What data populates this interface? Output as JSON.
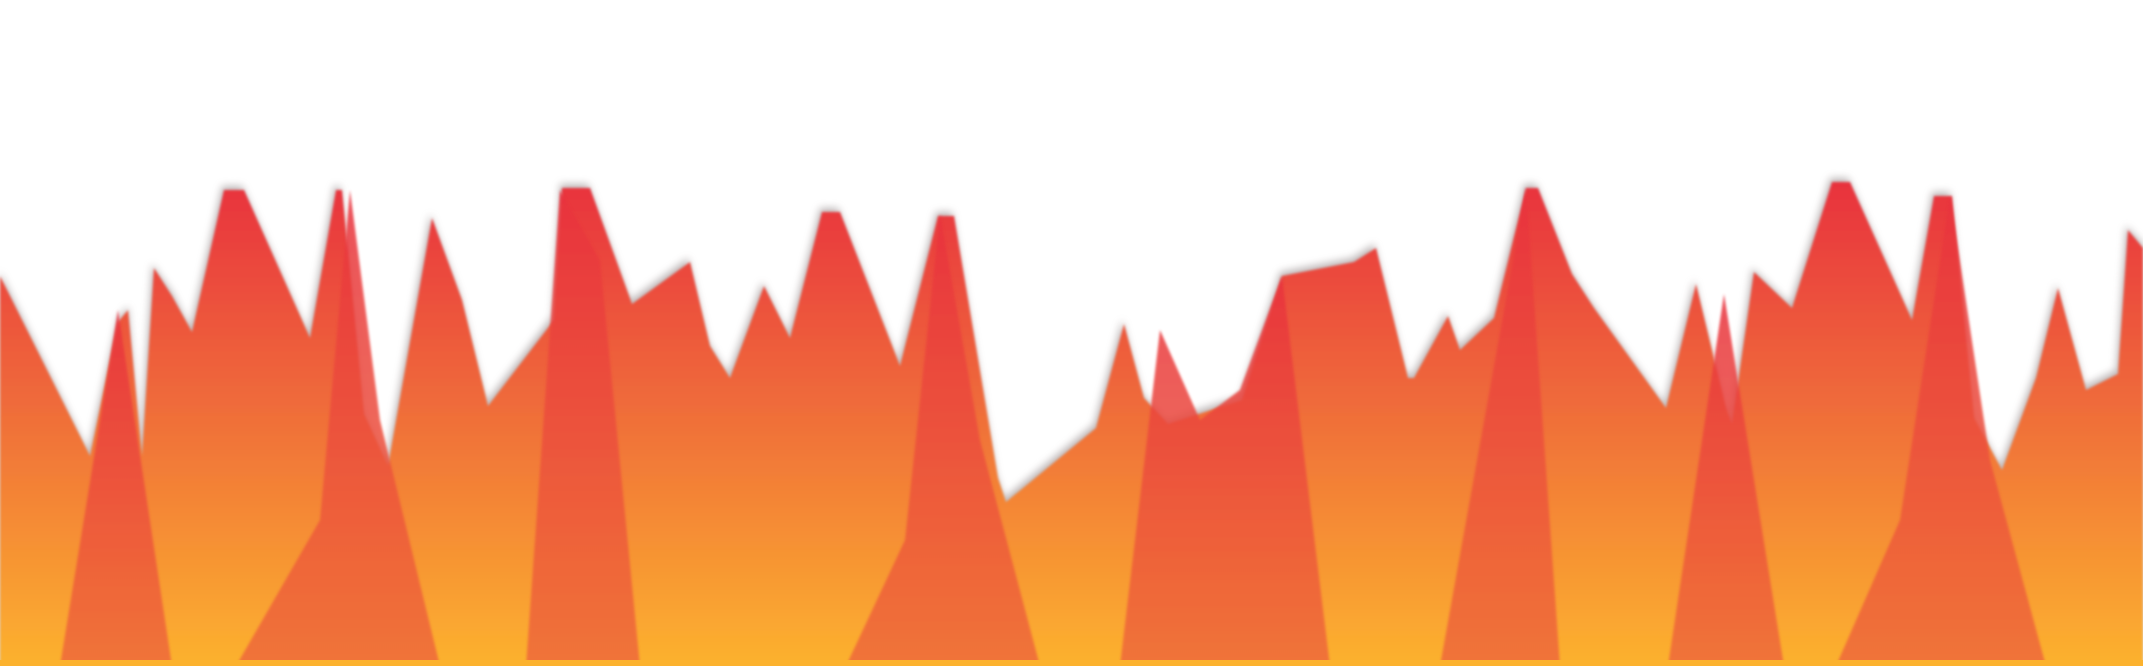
{
  "artwork": {
    "colors": {
      "background": "#ffffff",
      "flame_top": "#e8323e",
      "flame_mid": "#ef6a3a",
      "flame_bottom": "#fcb22e",
      "glow": "#8a7f80"
    }
  }
}
